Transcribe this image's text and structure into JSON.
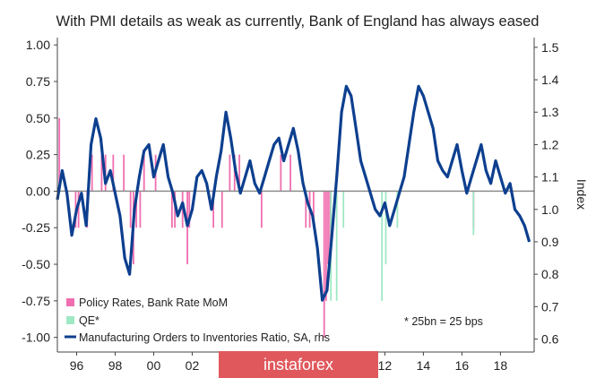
{
  "chart_data": {
    "type": "line",
    "title": "With PMI details as weak as currently, Bank of England has always eased",
    "xlabel": "",
    "ylabel_left": "",
    "ylabel_right": "Index",
    "x_ticks": [
      "96",
      "98",
      "00",
      "02",
      "12",
      "14",
      "16",
      "18"
    ],
    "x_domain": [
      1995.0,
      2019.75
    ],
    "ylim_left": [
      -1.1,
      1.05
    ],
    "yticks_left": [
      "1.00",
      "0.75",
      "0.50",
      "0.25",
      "0.00",
      "-0.25",
      "-0.50",
      "-0.75",
      "-1.00"
    ],
    "ylim_right": [
      0.56,
      1.53
    ],
    "yticks_right": [
      "1.5",
      "1.4",
      "1.3",
      "1.2",
      "1.1",
      "1.0",
      "0.9",
      "0.8",
      "0.7",
      "0.6"
    ],
    "grid": false,
    "zero_line": true,
    "legend_position": "bottom-left",
    "note": "* 25bn = 25 bps",
    "colors": {
      "policy": "#f06fb0",
      "qe": "#9fe8c4",
      "ratio": "#0d3f8f",
      "zero": "#8c8c8c"
    },
    "series": [
      {
        "name": "Policy Rates, Bank Rate MoM",
        "type": "bar",
        "axis": "left",
        "color": "#f06fb0",
        "x": [
          1995.1,
          1995.95,
          1996.1,
          1996.55,
          1996.8,
          1997.3,
          1997.5,
          1997.9,
          1998.45,
          1998.8,
          1998.95,
          1999.1,
          1999.3,
          1999.5,
          2000.1,
          2000.95,
          2001.1,
          2001.5,
          2001.75,
          2001.85,
          2003.1,
          2003.55,
          2003.95,
          2004.2,
          2004.45,
          2005.6,
          2006.6,
          2007.1,
          2007.9,
          2008.1,
          2008.3,
          2008.85,
          2008.95,
          2009.05,
          2009.15,
          2016.6
        ],
        "values": [
          0.5,
          -0.25,
          -0.25,
          -0.25,
          0.25,
          0.25,
          0.25,
          0.25,
          0.25,
          -0.25,
          -0.5,
          -0.25,
          -0.25,
          0.25,
          0.25,
          -0.25,
          -0.25,
          -0.25,
          -0.5,
          -0.25,
          -0.25,
          -0.25,
          0.25,
          0.25,
          0.25,
          -0.25,
          0.25,
          0.25,
          -0.25,
          -0.25,
          -0.25,
          -1.0,
          -0.75,
          -0.5,
          -0.5,
          -0.25
        ]
      },
      {
        "name": "QE*",
        "type": "bar",
        "axis": "left",
        "color": "#9fe8c4",
        "x": [
          2009.2,
          2009.5,
          2009.85,
          2011.85,
          2012.05,
          2012.65,
          2016.6
        ],
        "values": [
          -0.75,
          -0.75,
          -0.25,
          -0.75,
          -0.5,
          -0.25,
          -0.3
        ]
      },
      {
        "name": "Manufacturing Orders to Inventories Ratio, SA, rhs",
        "type": "line",
        "axis": "right",
        "color": "#0d3f8f",
        "x": [
          1995.0,
          1995.25,
          1995.5,
          1995.75,
          1996.0,
          1996.25,
          1996.5,
          1996.75,
          1997.0,
          1997.25,
          1997.5,
          1997.75,
          1998.0,
          1998.25,
          1998.5,
          1998.75,
          1999.0,
          1999.25,
          1999.5,
          1999.75,
          2000.0,
          2000.25,
          2000.5,
          2000.75,
          2001.0,
          2001.25,
          2001.5,
          2001.75,
          2002.0,
          2002.25,
          2002.5,
          2002.75,
          2003.0,
          2003.25,
          2003.5,
          2003.75,
          2004.0,
          2004.25,
          2004.5,
          2004.75,
          2005.0,
          2005.25,
          2005.5,
          2005.75,
          2006.0,
          2006.25,
          2006.5,
          2006.75,
          2007.0,
          2007.25,
          2007.5,
          2007.75,
          2008.0,
          2008.25,
          2008.5,
          2008.75,
          2009.0,
          2009.25,
          2009.5,
          2009.75,
          2010.0,
          2010.25,
          2010.5,
          2010.75,
          2011.0,
          2011.25,
          2011.5,
          2011.75,
          2012.0,
          2012.25,
          2012.5,
          2012.75,
          2013.0,
          2013.25,
          2013.5,
          2013.75,
          2014.0,
          2014.25,
          2014.5,
          2014.75,
          2015.0,
          2015.25,
          2015.5,
          2015.75,
          2016.0,
          2016.25,
          2016.5,
          2016.75,
          2017.0,
          2017.25,
          2017.5,
          2017.75,
          2018.0,
          2018.25,
          2018.5,
          2018.75,
          2019.0,
          2019.25,
          2019.5
        ],
        "values": [
          1.03,
          1.12,
          1.05,
          0.92,
          1.0,
          1.05,
          0.95,
          1.2,
          1.28,
          1.22,
          1.08,
          1.12,
          1.05,
          0.98,
          0.85,
          0.8,
          1.0,
          1.1,
          1.18,
          1.2,
          1.1,
          1.15,
          1.2,
          1.1,
          1.05,
          0.98,
          1.02,
          0.95,
          1.0,
          1.1,
          1.12,
          1.08,
          1.0,
          1.1,
          1.18,
          1.3,
          1.22,
          1.12,
          1.05,
          1.1,
          1.15,
          1.08,
          1.05,
          1.1,
          1.15,
          1.2,
          1.22,
          1.15,
          1.2,
          1.25,
          1.18,
          1.08,
          1.02,
          0.98,
          0.88,
          0.72,
          0.75,
          0.92,
          1.1,
          1.3,
          1.38,
          1.35,
          1.25,
          1.15,
          1.1,
          1.05,
          1.0,
          0.98,
          1.02,
          0.95,
          1.0,
          1.05,
          1.1,
          1.2,
          1.3,
          1.38,
          1.35,
          1.3,
          1.25,
          1.15,
          1.12,
          1.1,
          1.15,
          1.2,
          1.12,
          1.05,
          1.1,
          1.15,
          1.2,
          1.12,
          1.08,
          1.15,
          1.1,
          1.05,
          1.08,
          1.0,
          0.98,
          0.95,
          0.9
        ]
      }
    ]
  },
  "watermark": {
    "text": "instaforex",
    "bg_color": "#e0585c"
  }
}
